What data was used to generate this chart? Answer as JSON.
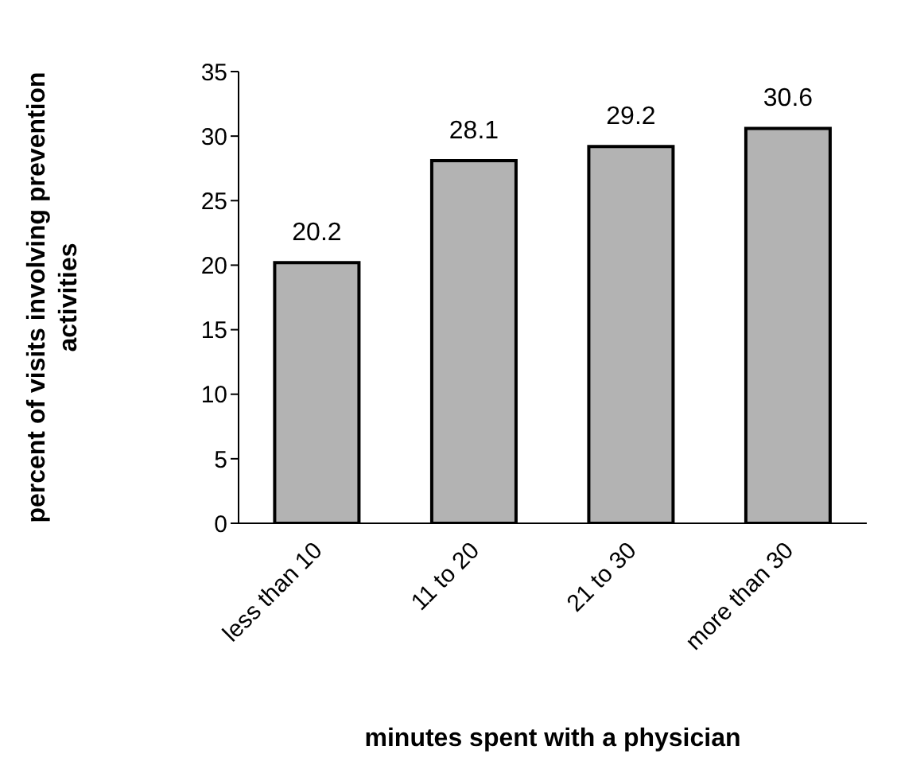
{
  "chart_data": {
    "type": "bar",
    "xlabel": "minutes spent with a physician",
    "ylabel": "percent of visits involving prevention activities",
    "categories": [
      "less than 10",
      "11 to 20",
      "21 to 30",
      "more than 30"
    ],
    "values": [
      20.2,
      28.1,
      29.2,
      30.6
    ],
    "color": "#b3b3b3",
    "ylim": [
      0,
      35
    ],
    "yticks": [
      0,
      5,
      10,
      15,
      20,
      25,
      30,
      35
    ],
    "data_labels": true,
    "grid": false
  }
}
